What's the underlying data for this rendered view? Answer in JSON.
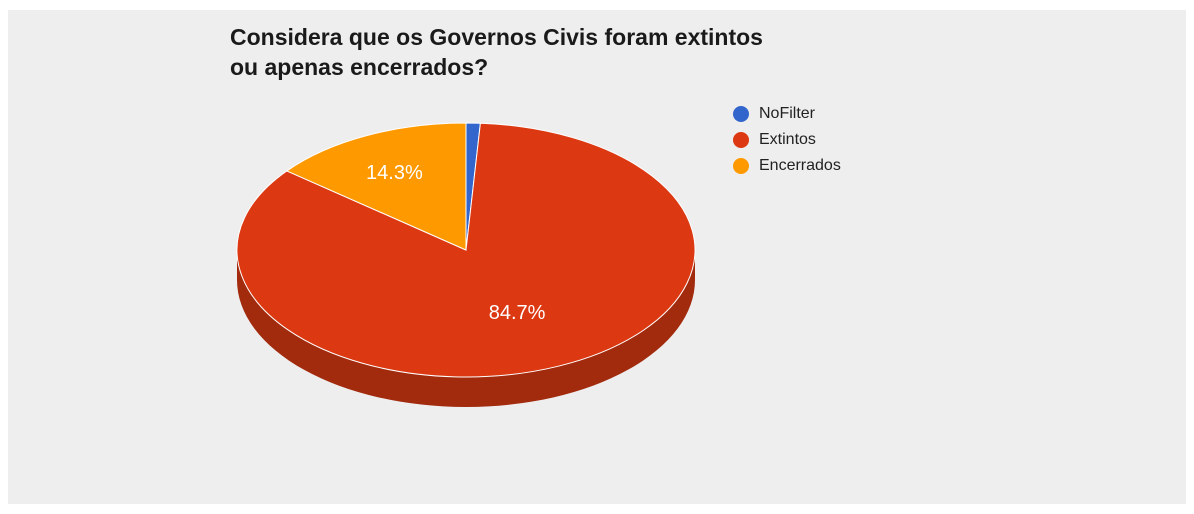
{
  "chart_data": {
    "type": "pie",
    "title": "Considera que os Governos Civis foram extintos ou apenas encerrados?",
    "title_lines": [
      "Considera que os Governos Civis foram extintos",
      "ou apenas encerrados?"
    ],
    "style": "3d",
    "legend_position": "right",
    "slices": [
      {
        "name": "NoFilter",
        "value": 1.0,
        "color": "#3366cc",
        "shade": "#254a94",
        "label": ""
      },
      {
        "name": "Extintos",
        "value": 84.7,
        "color": "#dc3912",
        "shade": "#a22a0d",
        "label": "84.7%"
      },
      {
        "name": "Encerrados",
        "value": 14.3,
        "color": "#ff9900",
        "shade": "#bb7000",
        "label": "14.3%"
      }
    ]
  }
}
